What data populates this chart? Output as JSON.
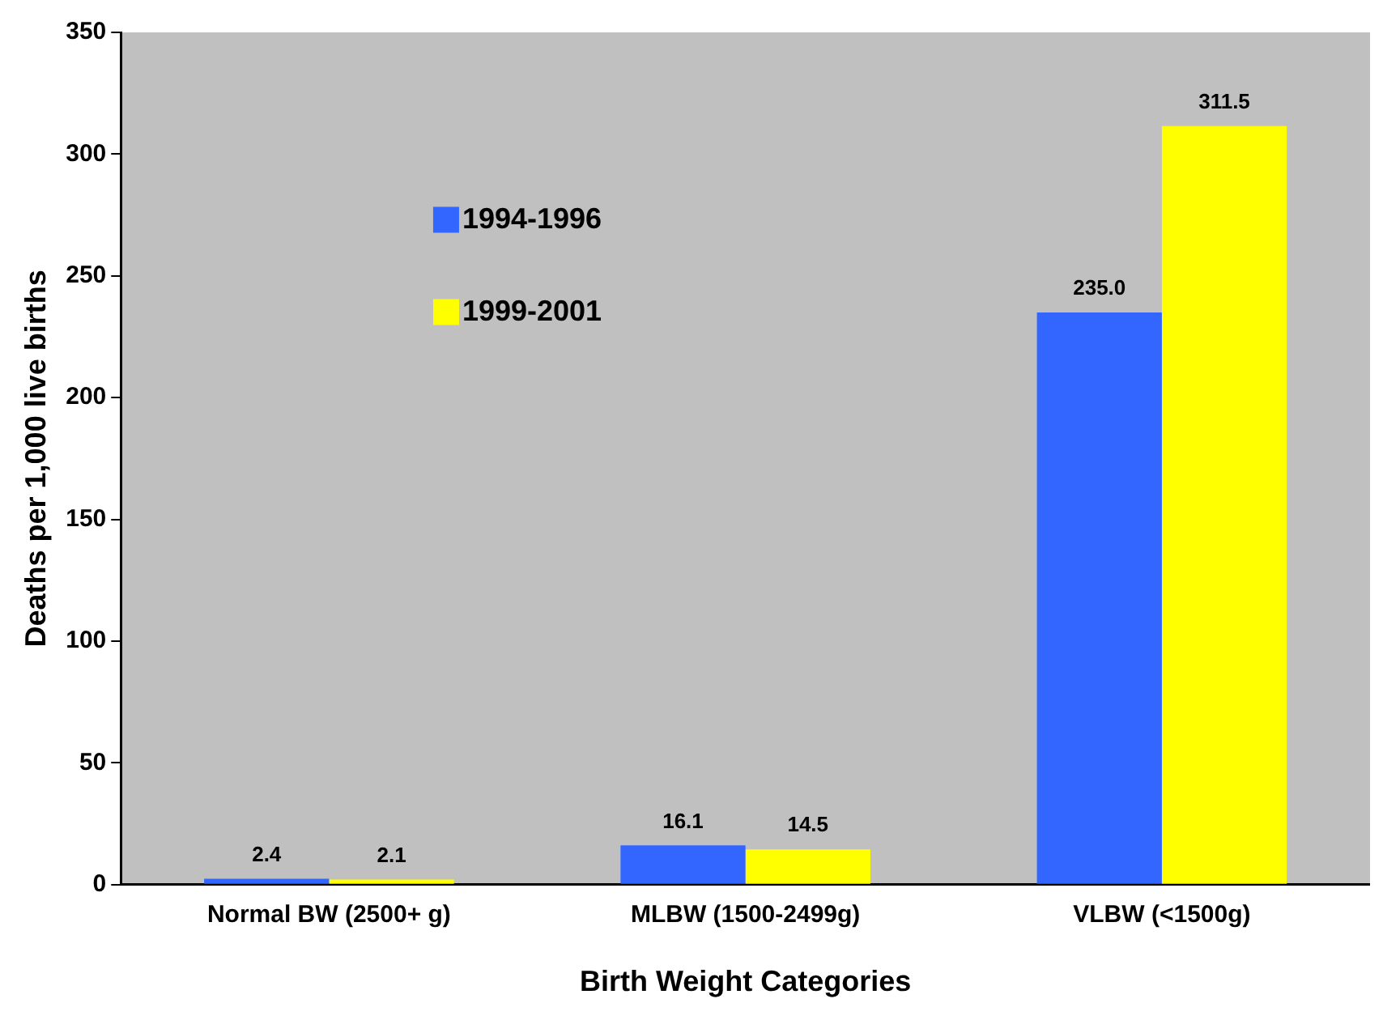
{
  "chart_data": {
    "type": "bar",
    "xlabel": "Birth Weight Categories",
    "ylabel": "Deaths per 1,000 live births",
    "categories": [
      "Normal BW (2500+ g)",
      "MLBW (1500-2499g)",
      "VLBW (<1500g)"
    ],
    "series": [
      {
        "name": "1994-1996",
        "color": "#3366ff",
        "values": [
          2.4,
          16.1,
          235.0
        ],
        "value_labels": [
          "2.4",
          "16.1",
          "235.0"
        ]
      },
      {
        "name": "1999-2001",
        "color": "#ffff00",
        "values": [
          2.1,
          14.5,
          311.5
        ],
        "value_labels": [
          "2.1",
          "14.5",
          "311.5"
        ]
      }
    ],
    "ylim": [
      0,
      350
    ],
    "yticks": [
      0,
      50,
      100,
      150,
      200,
      250,
      300,
      350
    ],
    "grid": false,
    "legend": "top left"
  }
}
